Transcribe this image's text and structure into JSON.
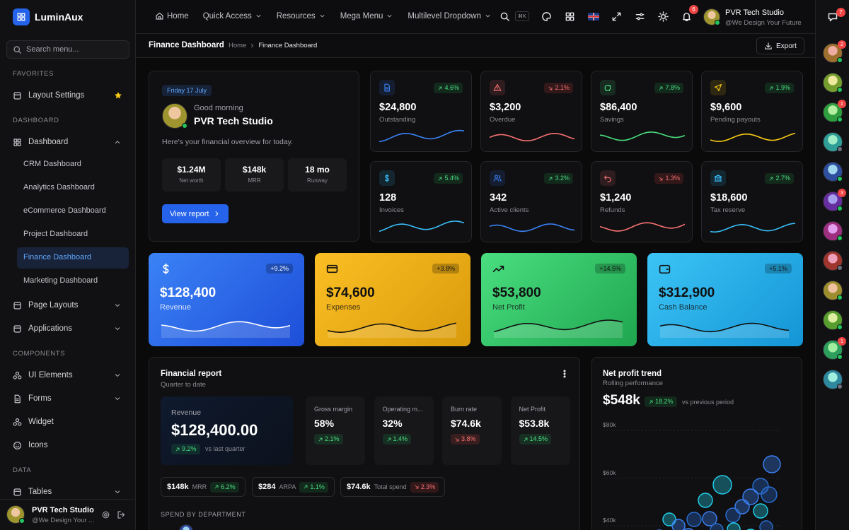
{
  "sidebar": {
    "brand": "LuminAux",
    "search_placeholder": "Search menu...",
    "sections": [
      {
        "title": "FAVORITES",
        "items": [
          {
            "label": "Layout Settings",
            "starred": true
          }
        ]
      },
      {
        "title": "DASHBOARD",
        "items": [
          {
            "label": "Dashboard",
            "expanded": true,
            "children": [
              {
                "label": "CRM Dashboard"
              },
              {
                "label": "Analytics Dashboard"
              },
              {
                "label": "eCommerce Dashboard"
              },
              {
                "label": "Project Dashboard"
              },
              {
                "label": "Finance Dashboard",
                "active": true
              },
              {
                "label": "Marketing Dashboard"
              }
            ]
          },
          {
            "label": "Page Layouts",
            "expandable": true
          },
          {
            "label": "Applications",
            "expandable": true
          }
        ]
      },
      {
        "title": "COMPONENTS",
        "items": [
          {
            "label": "UI Elements",
            "expandable": true
          },
          {
            "label": "Forms",
            "expandable": true
          },
          {
            "label": "Widget"
          },
          {
            "label": "Icons"
          }
        ]
      },
      {
        "title": "DATA",
        "items": [
          {
            "label": "Tables",
            "expandable": true
          }
        ]
      }
    ],
    "user": {
      "name": "PVR Tech Studio",
      "tagline": "@We Design Your ..."
    }
  },
  "topbar": {
    "nav": [
      {
        "label": "Home"
      },
      {
        "label": "Quick Access",
        "dropdown": true
      },
      {
        "label": "Resources",
        "dropdown": true
      },
      {
        "label": "Mega Menu",
        "dropdown": true
      },
      {
        "label": "Multilevel Dropdown",
        "dropdown": true
      }
    ],
    "shortcut": "⌘K",
    "notifications": 6,
    "user": {
      "name": "PVR Tech Studio",
      "tagline": "@We Design Your Future"
    }
  },
  "breadcrumb": {
    "title": "Finance Dashboard",
    "trail": [
      "Home",
      "Finance Dashboard"
    ],
    "action": "Export"
  },
  "welcome": {
    "date": "Friday 17 July",
    "greeting": "Good morning",
    "name": "PVR Tech Studio",
    "message": "Here's your financial overview for today.",
    "stats": [
      {
        "value": "$1.24M",
        "label": "Net worth"
      },
      {
        "value": "$148k",
        "label": "MRR"
      },
      {
        "value": "18 mo",
        "label": "Runway"
      }
    ],
    "button": "View report"
  },
  "kpis": [
    {
      "value": "$24,800",
      "label": "Outstanding",
      "change": "4.6%",
      "trend": "up",
      "color": "#3b82f6"
    },
    {
      "value": "$3,200",
      "label": "Overdue",
      "change": "2.1%",
      "trend": "down",
      "color": "#f87171"
    },
    {
      "value": "$86,400",
      "label": "Savings",
      "change": "7.8%",
      "trend": "up",
      "color": "#4ade80"
    },
    {
      "value": "$9,600",
      "label": "Pending payouts",
      "change": "1.9%",
      "trend": "up",
      "color": "#facc15"
    },
    {
      "value": "128",
      "label": "Invoices",
      "change": "5.4%",
      "trend": "up",
      "color": "#38bdf8"
    },
    {
      "value": "342",
      "label": "Active clients",
      "change": "3.2%",
      "trend": "up",
      "color": "#3b82f6"
    },
    {
      "value": "$1,240",
      "label": "Refunds",
      "change": "1.3%",
      "trend": "down",
      "color": "#f87171"
    },
    {
      "value": "$18,600",
      "label": "Tax reserve",
      "change": "2.7%",
      "trend": "up",
      "color": "#38bdf8"
    }
  ],
  "highlights": [
    {
      "value": "$128,400",
      "label": "Revenue",
      "change": "+9.2%",
      "from": "#3b82f6",
      "to": "#1d4ed8",
      "text_color": "#ffffff"
    },
    {
      "value": "$74,600",
      "label": "Expenses",
      "change": "+3.8%",
      "from": "#fbbf24",
      "to": "#d99a0b",
      "text_color": "#111111"
    },
    {
      "value": "$53,800",
      "label": "Net Profit",
      "change": "+14.5%",
      "from": "#4ade80",
      "to": "#1fa64f",
      "text_color": "#111111"
    },
    {
      "value": "$312,900",
      "label": "Cash Balance",
      "change": "+5.1%",
      "from": "#3cc4f5",
      "to": "#1495d6",
      "text_color": "#111111"
    }
  ],
  "financial_report": {
    "title": "Financial report",
    "subtitle": "Quarter to date",
    "revenue": {
      "label": "Revenue",
      "value": "$128,400.00",
      "change": "9.2%",
      "trend": "up",
      "note": "vs last quarter"
    },
    "metrics": [
      {
        "label": "Gross margin",
        "value": "58%",
        "change": "2.1%",
        "trend": "up"
      },
      {
        "label": "Operating m...",
        "value": "32%",
        "change": "1.4%",
        "trend": "up"
      },
      {
        "label": "Burn rate",
        "value": "$74.6k",
        "change": "3.8%",
        "trend": "down"
      },
      {
        "label": "Net Profit",
        "value": "$53.8k",
        "change": "14.5%",
        "trend": "up"
      }
    ],
    "pills": [
      {
        "value": "$148k",
        "label": "MRR",
        "change": "6.2%",
        "trend": "up"
      },
      {
        "value": "$284",
        "label": "ARPA",
        "change": "1.1%",
        "trend": "up"
      },
      {
        "value": "$74.6k",
        "label": "Total spend",
        "change": "2.3%",
        "trend": "down"
      }
    ],
    "section": "SPEND BY DEPARTMENT"
  },
  "net_profit": {
    "title": "Net profit trend",
    "subtitle": "Rolling performance",
    "value": "$548k",
    "change": "18.2%",
    "trend": "up",
    "note": "vs previous period",
    "axis": [
      "$80k",
      "$60k",
      "$40k"
    ]
  },
  "rail": {
    "messages": 7,
    "avatars": [
      {
        "status": "online",
        "badge": 2
      },
      {
        "status": "online"
      },
      {
        "status": "online",
        "badge": 1
      },
      {
        "status": "away"
      },
      {
        "status": "online"
      },
      {
        "status": "online",
        "badge": 3
      },
      {
        "status": "online"
      },
      {
        "status": "away"
      },
      {
        "status": "online"
      },
      {
        "status": "online"
      },
      {
        "status": "online",
        "badge": 1
      },
      {
        "status": "away"
      }
    ]
  }
}
